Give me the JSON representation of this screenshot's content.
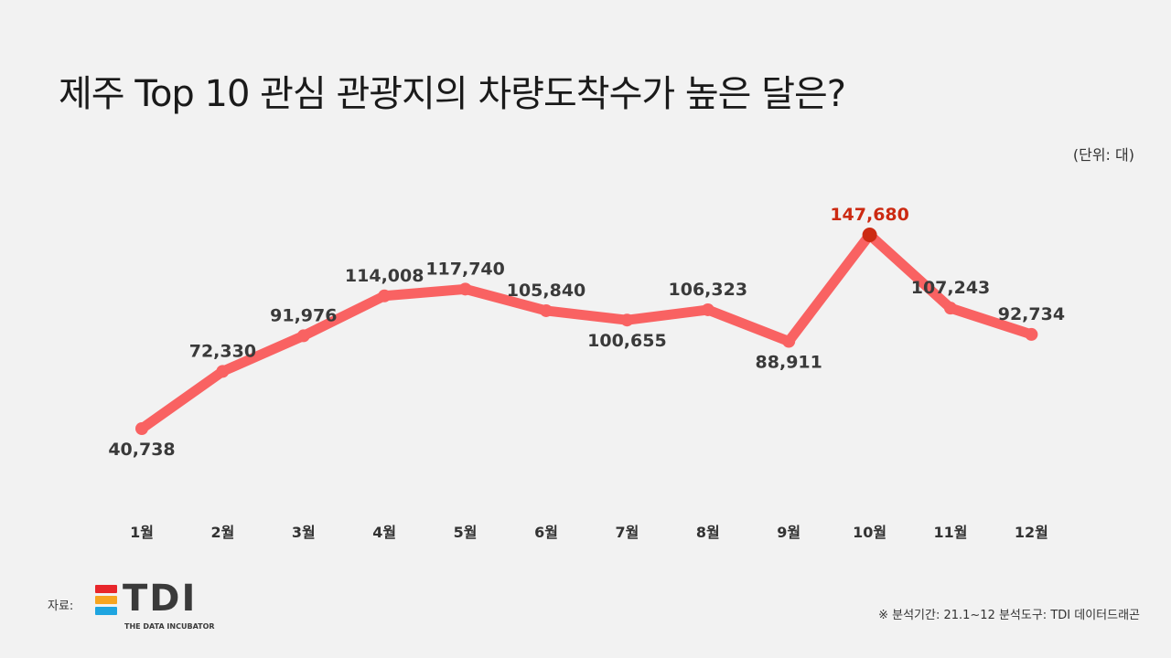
{
  "title": "제주 Top 10 관심 관광지의 차량도착수가 높은 달은?",
  "unit_label": "(단위: 대)",
  "source": {
    "label": "자료:",
    "logo_text": "TDI",
    "logo_tagline": "THE DATA INCUBATOR",
    "logo_colors": [
      "#e8262b",
      "#f7a521",
      "#1fa5e0"
    ]
  },
  "footnote": "※ 분석기간: 21.1~12 분석도구: TDI 데이터드래곤",
  "colors": {
    "line": "#f96262",
    "highlight_point": "#cc2a12",
    "highlight_label": "#cc2a12",
    "label": "#3a3a3a"
  },
  "chart_data": {
    "type": "line",
    "categories": [
      "1월",
      "2월",
      "3월",
      "4월",
      "5월",
      "6월",
      "7월",
      "8월",
      "9월",
      "10월",
      "11월",
      "12월"
    ],
    "values": [
      40738,
      72330,
      91976,
      114008,
      117740,
      105840,
      100655,
      106323,
      88911,
      147680,
      107243,
      92734
    ],
    "value_labels": [
      "40,738",
      "72,330",
      "91,976",
      "114,008",
      "117,740",
      "105,840",
      "100,655",
      "106,323",
      "88,911",
      "147,680",
      "107,243",
      "92,734"
    ],
    "highlight_index": 9,
    "grid": false,
    "legend": "none"
  }
}
